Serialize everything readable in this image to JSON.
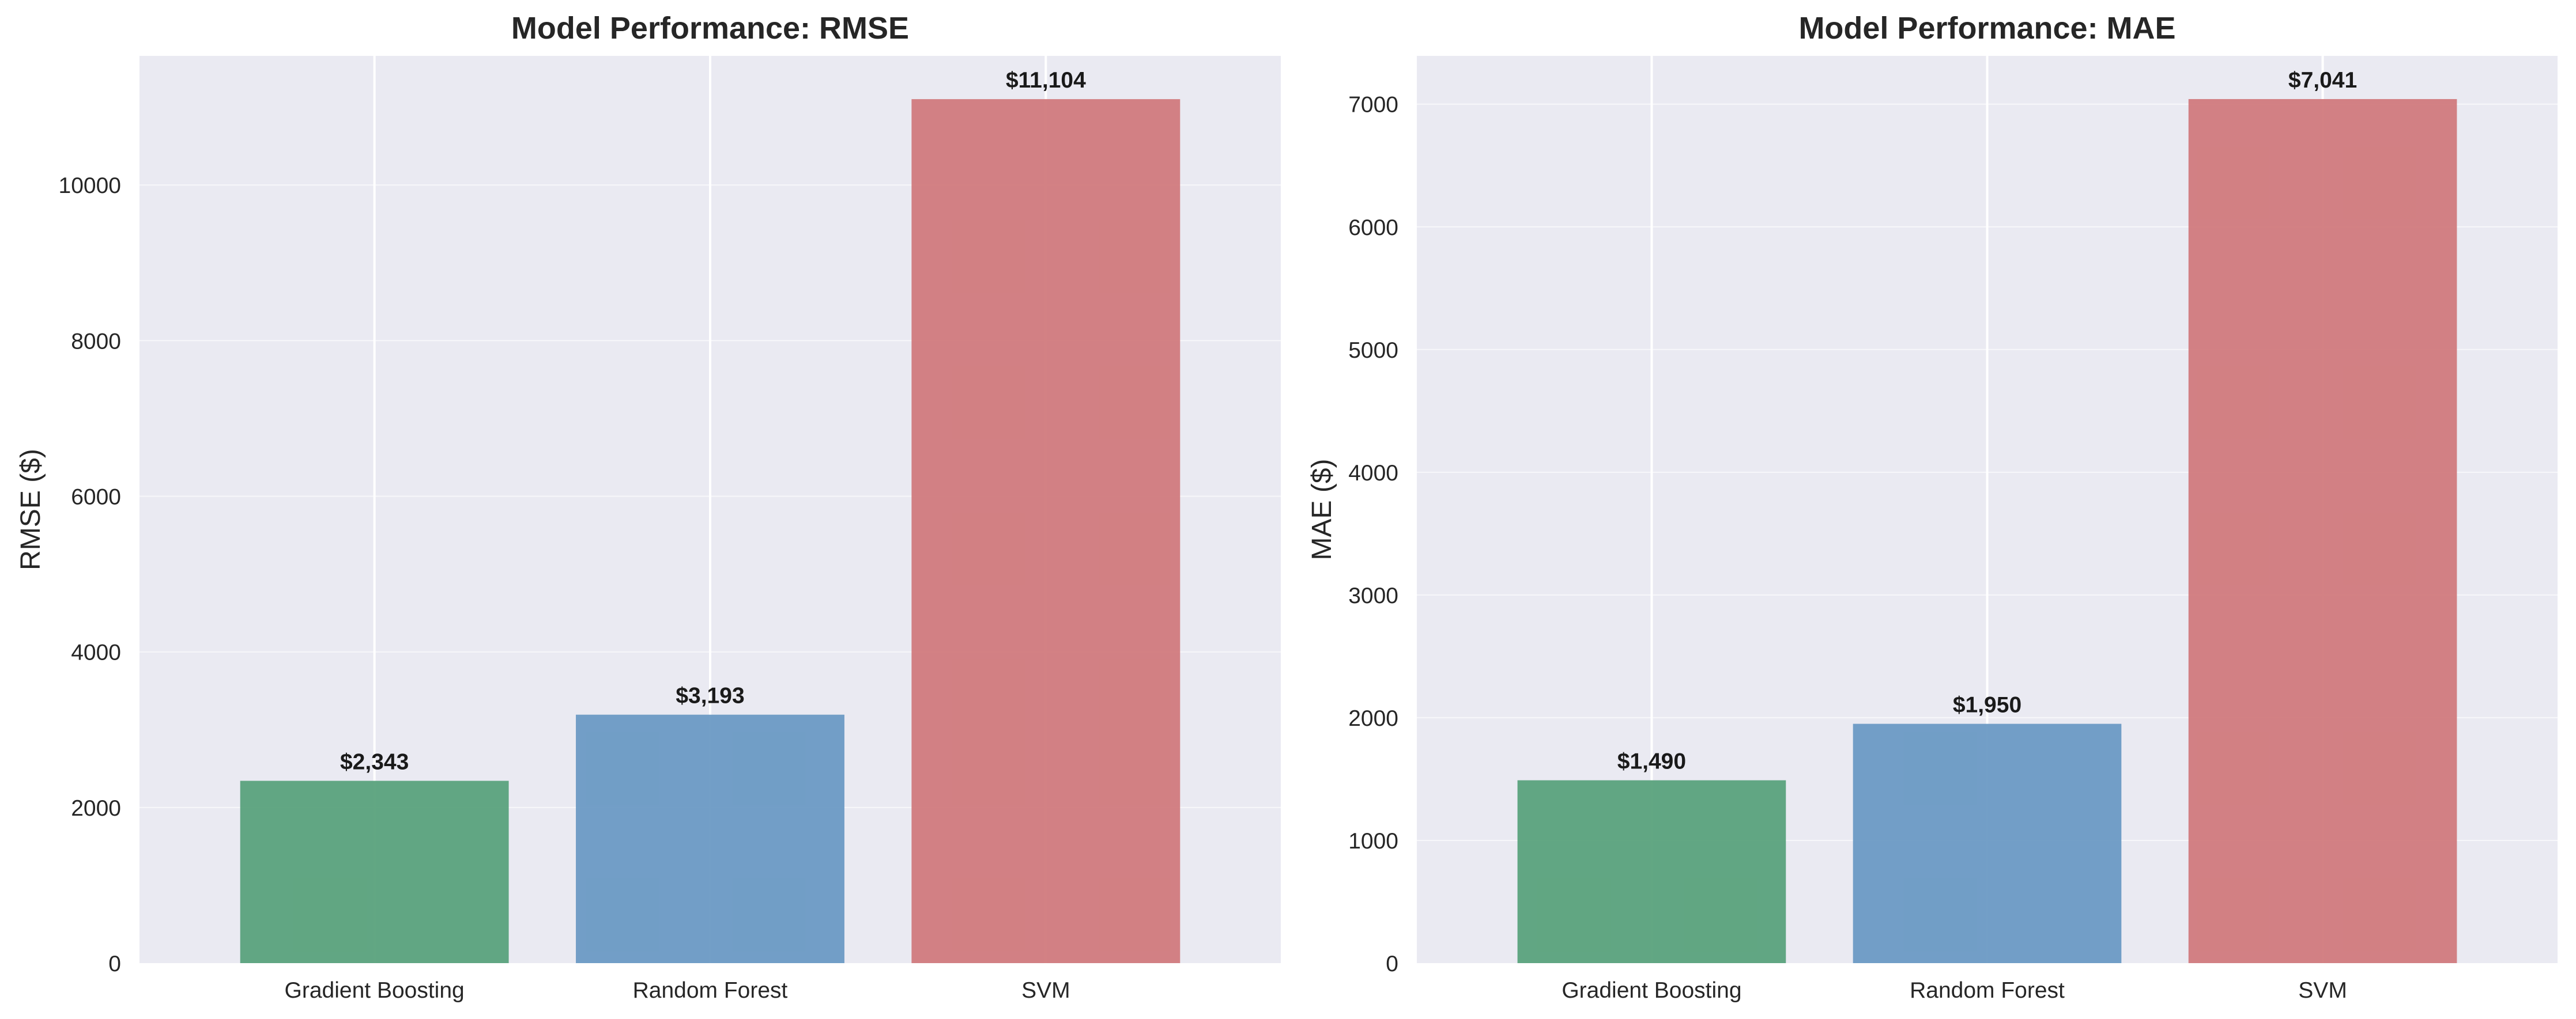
{
  "chart_data": [
    {
      "type": "bar",
      "title": "Model Performance: RMSE",
      "xlabel": "",
      "ylabel": "RMSE ($)",
      "categories": [
        "Gradient Boosting",
        "Random Forest",
        "SVM"
      ],
      "values": [
        2343,
        3193,
        11104
      ],
      "data_labels": [
        "$2,343",
        "$3,193",
        "$11,104"
      ],
      "colors": [
        "#5aa27c",
        "#6b9ac4",
        "#d17a7d"
      ],
      "ylim": [
        0,
        11660
      ],
      "yticks": [
        0,
        2000,
        4000,
        6000,
        8000,
        10000
      ],
      "grid": true
    },
    {
      "type": "bar",
      "title": "Model Performance: MAE",
      "xlabel": "",
      "ylabel": "MAE ($)",
      "categories": [
        "Gradient Boosting",
        "Random Forest",
        "SVM"
      ],
      "values": [
        1490,
        1950,
        7041
      ],
      "data_labels": [
        "$1,490",
        "$1,950",
        "$7,041"
      ],
      "colors": [
        "#5aa27c",
        "#6b9ac4",
        "#d17a7d"
      ],
      "ylim": [
        0,
        7393
      ],
      "yticks": [
        0,
        1000,
        2000,
        3000,
        4000,
        5000,
        6000,
        7000
      ],
      "grid": true
    }
  ],
  "colors": {
    "plot_background": "#eaeaf2",
    "grid": "#ffffff",
    "text": "#262626"
  }
}
